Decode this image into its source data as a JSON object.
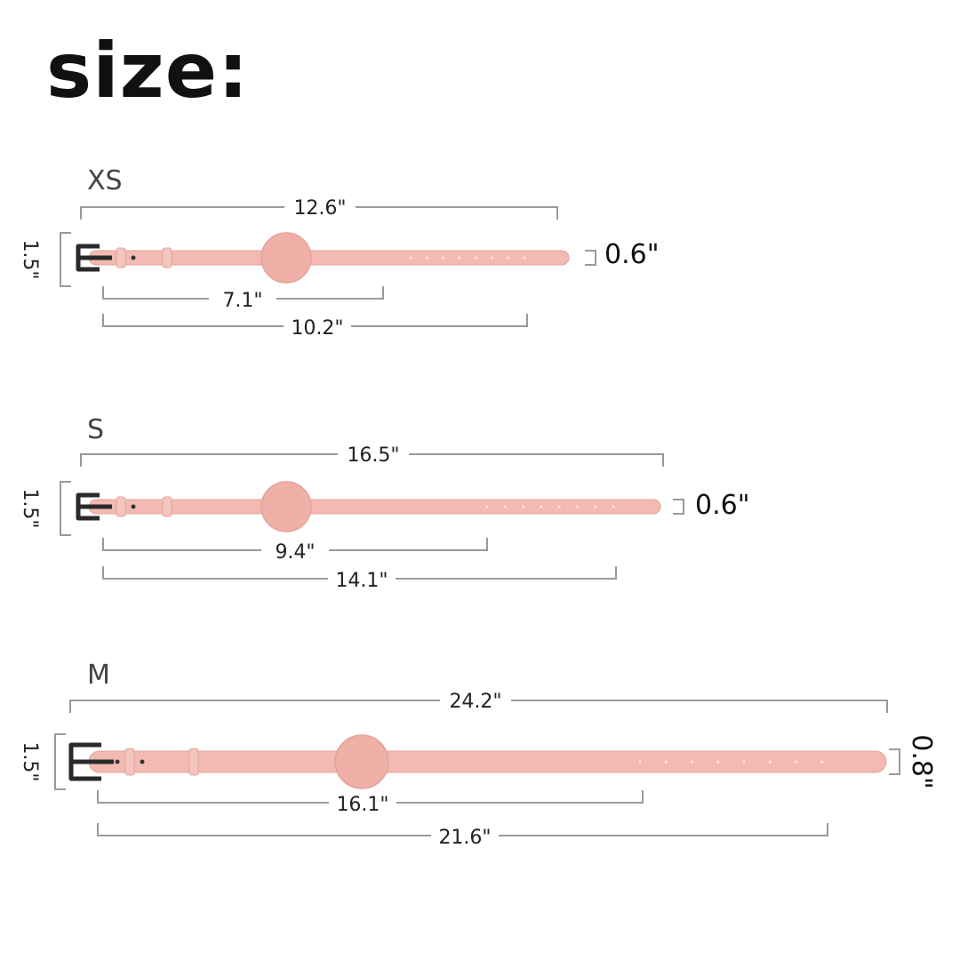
{
  "title": "size:",
  "colors": {
    "strap": "#f2bab2",
    "strap_edge": "#e3a39a",
    "tag": "#efb0a7",
    "buckle": "#2a2a2a",
    "dimension_line": "#9a9a9a"
  },
  "sizes": [
    {
      "name": "XS",
      "total_length": "12.6\"",
      "height": "1.5\"",
      "strap_width": "0.6\"",
      "min_length": "7.1\"",
      "max_length": "10.2\""
    },
    {
      "name": "S",
      "total_length": "16.5\"",
      "height": "1.5\"",
      "strap_width": "0.6\"",
      "min_length": "9.4\"",
      "max_length": "14.1\""
    },
    {
      "name": "M",
      "total_length": "24.2\"",
      "height": "1.5\"",
      "strap_width": "0.8\"",
      "min_length": "16.1\"",
      "max_length": "21.6\""
    }
  ]
}
